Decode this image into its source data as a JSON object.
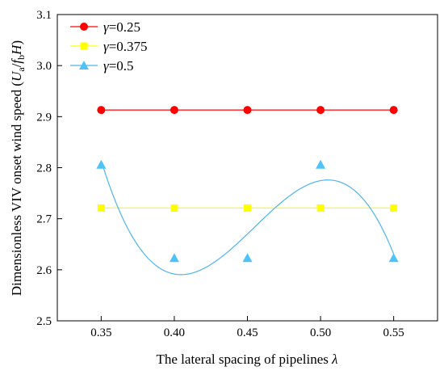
{
  "chart_data": {
    "type": "line",
    "xlabel": "The lateral spacing of pipelines",
    "xlabel_symbol": "λ",
    "ylabel": "Dimensionless VIV onset wind speed (",
    "ylabel_symbol_parts": [
      "U",
      "a",
      "/",
      "f",
      "b",
      "H",
      ")"
    ],
    "x": [
      0.35,
      0.4,
      0.45,
      0.5,
      0.55
    ],
    "x_tick_labels": [
      "0.35",
      "0.40",
      "0.45",
      "0.50",
      "0.55"
    ],
    "xlim": [
      0.32,
      0.58
    ],
    "ylim": [
      2.5,
      3.1
    ],
    "y_ticks": [
      2.5,
      2.6,
      2.7,
      2.8,
      2.9,
      3.0,
      3.1
    ],
    "y_tick_labels": [
      "2.5",
      "2.6",
      "2.7",
      "2.8",
      "2.9",
      "3.0",
      "3.1"
    ],
    "legend_position": "top-left",
    "grid": false,
    "series": [
      {
        "name_symbol": "γ",
        "name_value": "=0.25",
        "marker": "circle",
        "marker_color": "#ff0000",
        "line_color": "#ff0000",
        "fit": "linear",
        "values": [
          2.913,
          2.913,
          2.913,
          2.913,
          2.913
        ]
      },
      {
        "name_symbol": "γ",
        "name_value": "=0.375",
        "marker": "square",
        "marker_color": "#ffff00",
        "line_color": "#ffff00",
        "fit": "linear",
        "values": [
          2.721,
          2.721,
          2.721,
          2.721,
          2.721
        ]
      },
      {
        "name_symbol": "γ",
        "name_value": "=0.5",
        "marker": "triangle",
        "marker_color": "#4fc3f7",
        "line_color": "#4fb4ea",
        "fit": "cubic",
        "values": [
          2.806,
          2.623,
          2.623,
          2.806,
          2.623
        ]
      }
    ]
  }
}
